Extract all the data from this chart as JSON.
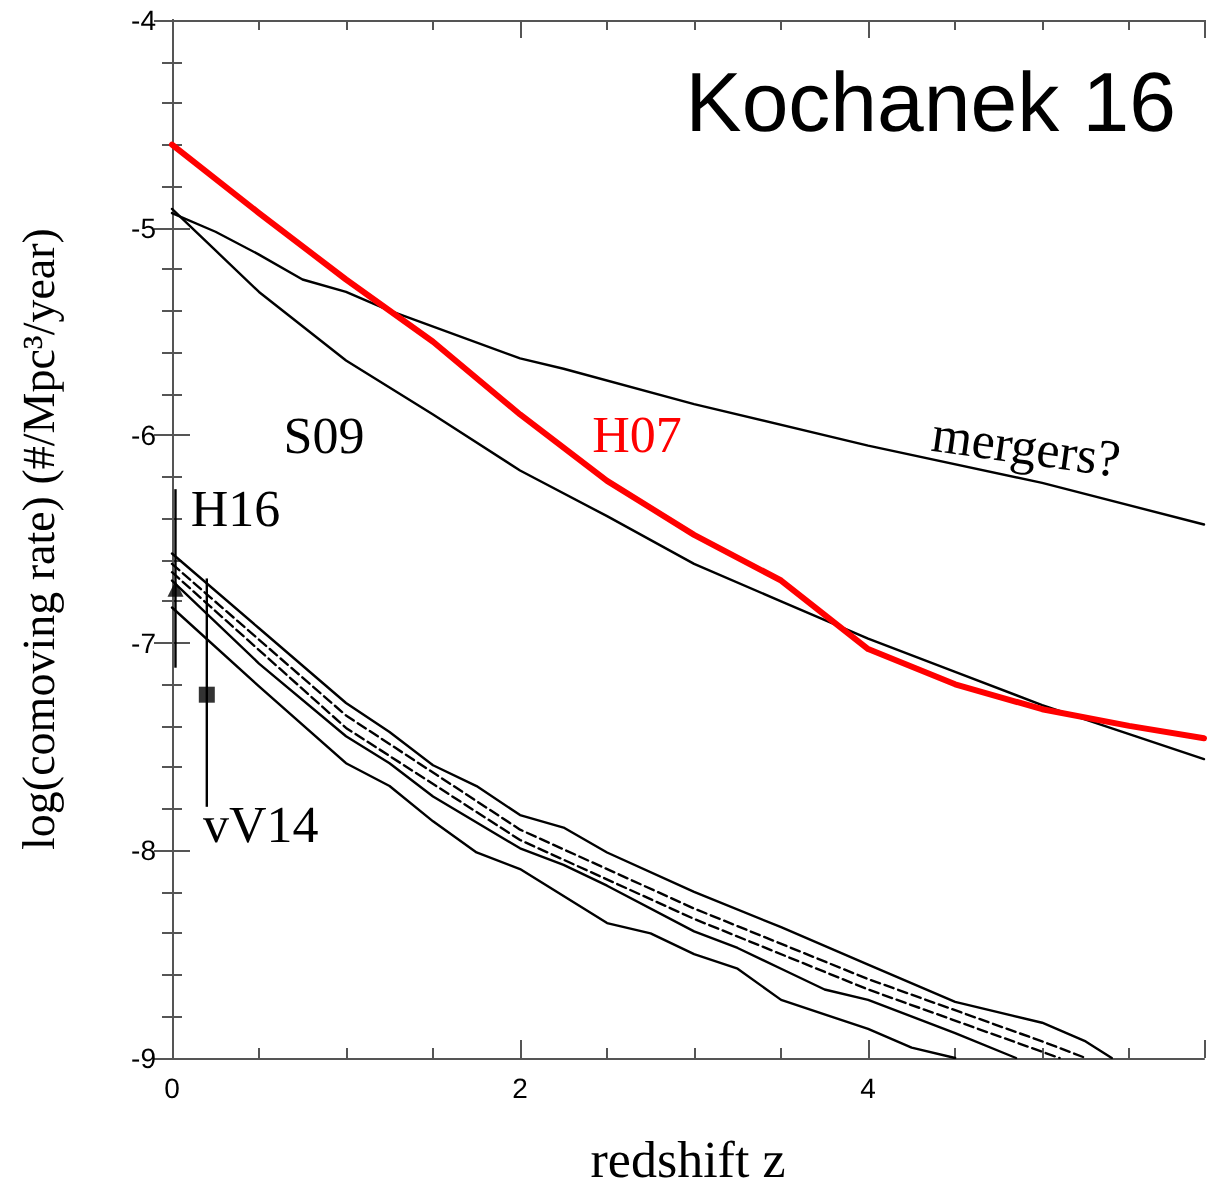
{
  "chart_data": {
    "type": "line",
    "title": "Kochanek 16",
    "xlabel": "redshift z",
    "ylabel": "log(comoving rate) (#/Mpc³/year)",
    "xlim": [
      0,
      5.93
    ],
    "xticks": [
      0,
      2,
      4
    ],
    "ylim": [
      -9,
      -4
    ],
    "yticks": [
      -9,
      -8,
      -7,
      -6,
      -5,
      -4
    ],
    "grid": false,
    "legend": false,
    "marker": "none",
    "line_style": "solid",
    "series": [
      {
        "name": "H07",
        "color": "#ff0000",
        "x": [
          0,
          0.5,
          1,
          1.5,
          2,
          2.5,
          3,
          3.5,
          4,
          4.5,
          5,
          5.5,
          5.93
        ],
        "values": [
          -4.6,
          -4.93,
          -5.25,
          -5.55,
          -5.9,
          -6.22,
          -6.48,
          -6.7,
          -7.03,
          -7.2,
          -7.32,
          -7.4,
          -7.46
        ]
      },
      {
        "name": "S09",
        "color": "#000000",
        "x": [
          0,
          0.25,
          0.5,
          1,
          1.5,
          2,
          2.5,
          3,
          3.5,
          4,
          4.5,
          5,
          5.5,
          5.93
        ],
        "values": [
          -4.91,
          -5.11,
          -5.31,
          -5.64,
          -5.9,
          -6.17,
          -6.39,
          -6.62,
          -6.8,
          -6.98,
          -7.14,
          -7.3,
          -7.44,
          -7.56
        ]
      },
      {
        "name": "mergers?",
        "color": "#000000",
        "x": [
          0,
          0.25,
          0.5,
          0.75,
          1,
          1.25,
          2,
          2.25,
          3,
          4,
          5,
          5.93
        ],
        "values": [
          -4.93,
          -5.02,
          -5.13,
          -5.25,
          -5.31,
          -5.4,
          -5.63,
          -5.68,
          -5.85,
          -6.05,
          -6.23,
          -6.43
        ]
      },
      {
        "color": "#000000",
        "x": [
          0,
          0.5,
          1,
          1.25,
          1.5,
          1.75,
          2,
          2.25,
          2.5,
          3,
          3.5,
          4,
          4.5,
          5,
          5.25,
          5.4
        ],
        "values": [
          -6.57,
          -6.93,
          -7.29,
          -7.43,
          -7.59,
          -7.69,
          -7.83,
          -7.89,
          -8.01,
          -8.2,
          -8.37,
          -8.55,
          -8.73,
          -8.83,
          -8.92,
          -9
        ]
      },
      {
        "color": "#000000",
        "line_style": "dashed",
        "x": [
          0,
          1,
          2,
          3,
          4,
          5,
          5.25
        ],
        "values": [
          -6.62,
          -7.35,
          -7.9,
          -8.28,
          -8.62,
          -8.92,
          -9
        ]
      },
      {
        "color": "#000000",
        "x": [
          0,
          0.5,
          1,
          1.25,
          1.5,
          2,
          2.25,
          2.5,
          3,
          3.25,
          3.5,
          3.75,
          4,
          4.5,
          4.85
        ],
        "values": [
          -6.7,
          -7.1,
          -7.45,
          -7.58,
          -7.74,
          -7.99,
          -8.07,
          -8.17,
          -8.39,
          -8.47,
          -8.57,
          -8.67,
          -8.72,
          -8.88,
          -9
        ]
      },
      {
        "color": "#000000",
        "line_style": "dashed",
        "x": [
          0,
          1,
          2,
          3,
          4,
          5,
          5.1
        ],
        "values": [
          -6.66,
          -7.41,
          -7.95,
          -8.33,
          -8.67,
          -8.97,
          -9
        ]
      },
      {
        "color": "#000000",
        "x": [
          0,
          0.5,
          1,
          1.25,
          1.5,
          1.75,
          2,
          2.5,
          2.75,
          3,
          3.25,
          3.5,
          4,
          4.25,
          4.5
        ],
        "values": [
          -6.83,
          -7.21,
          -7.58,
          -7.69,
          -7.86,
          -8.01,
          -8.09,
          -8.35,
          -8.4,
          -8.5,
          -8.57,
          -8.72,
          -8.86,
          -8.95,
          -9
        ]
      },
      {
        "name": "H16",
        "type": "scatter",
        "marker": "triangle",
        "color": "#000000",
        "x": [
          0.02
        ],
        "values": [
          -6.74
        ],
        "errors": [
          [
            -7.12,
            -6.26
          ]
        ]
      },
      {
        "name": "vV14",
        "type": "scatter",
        "marker": "square",
        "color": "#000000",
        "x": [
          0.2
        ],
        "values": [
          -7.25
        ],
        "errors": [
          [
            -7.79,
            -6.69
          ]
        ]
      }
    ]
  }
}
